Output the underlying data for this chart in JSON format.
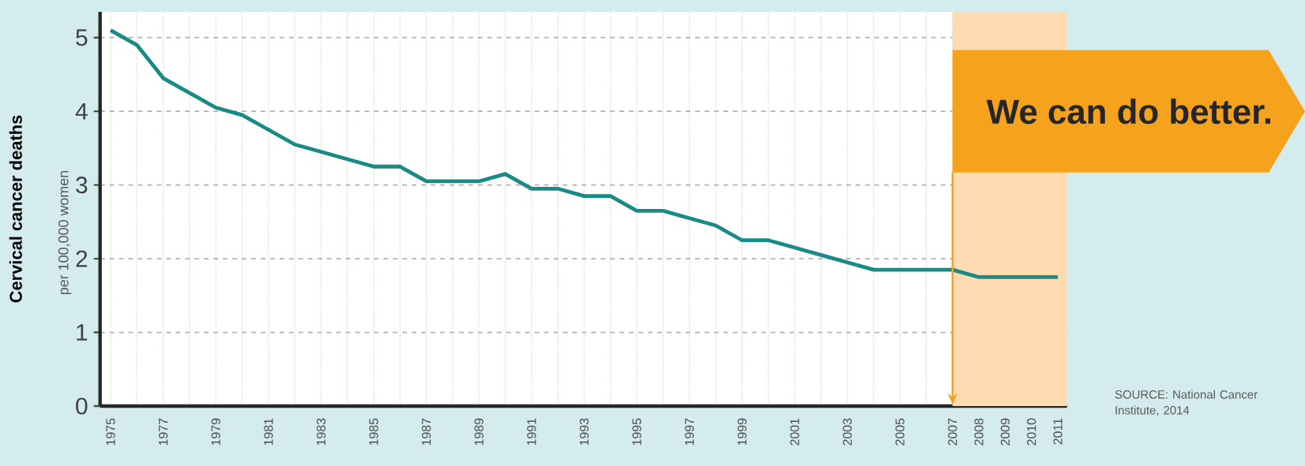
{
  "chart_data": {
    "type": "line",
    "ylabel": "Cervical cancer deaths",
    "categories": [
      "1975",
      null,
      "1977",
      null,
      "1979",
      null,
      "1981",
      null,
      "1983",
      null,
      "1985",
      null,
      "1987",
      null,
      "1989",
      null,
      "1991",
      null,
      "1993",
      null,
      "1995",
      null,
      "1997",
      null,
      "1999",
      null,
      "2001",
      null,
      "2003",
      null,
      "2005",
      null,
      "2007",
      "2008",
      "2009",
      "2010",
      "2011"
    ],
    "series": [
      {
        "color": "#1a8a84",
        "values": [
          5.1,
          4.9,
          4.45,
          4.25,
          4.05,
          3.95,
          3.75,
          3.55,
          3.45,
          3.35,
          3.25,
          3.25,
          3.05,
          3.05,
          3.05,
          3.15,
          2.95,
          2.95,
          2.85,
          2.85,
          2.65,
          2.65,
          2.55,
          2.45,
          2.25,
          2.25,
          2.15,
          2.05,
          1.95,
          1.85,
          1.85,
          1.85,
          1.85,
          1.75,
          1.75,
          1.75,
          1.75
        ]
      }
    ],
    "ylim": [
      0,
      5.35
    ],
    "yticks": [
      0,
      1,
      2,
      3,
      4,
      5
    ],
    "grid": true,
    "marker": "none",
    "line_style": "solid",
    "bands": [
      {
        "axis": "x",
        "from": "2007",
        "to": "2011",
        "color": "#fcdcb0"
      }
    ],
    "ref_lines": [
      {
        "axis": "x",
        "value": "2007",
        "color": "#f5a21c"
      }
    ],
    "annotations": [
      "We can do better.",
      "per 100,000 women",
      "SOURCE: National Cancer Institute, 2014"
    ]
  }
}
